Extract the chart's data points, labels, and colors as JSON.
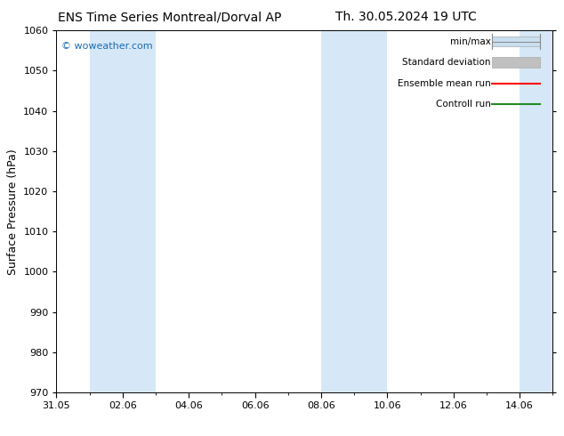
{
  "title_left": "ENS Time Series Montreal/Dorval AP",
  "title_right": "Th. 30.05.2024 19 UTC",
  "ylabel": "Surface Pressure (hPa)",
  "ylim": [
    970,
    1060
  ],
  "yticks": [
    970,
    980,
    990,
    1000,
    1010,
    1020,
    1030,
    1040,
    1050,
    1060
  ],
  "xtick_labels": [
    "31.05",
    "02.06",
    "04.06",
    "06.06",
    "08.06",
    "10.06",
    "12.06",
    "14.06"
  ],
  "xtick_positions": [
    0,
    2,
    4,
    6,
    8,
    10,
    12,
    14
  ],
  "xlim": [
    0,
    15
  ],
  "shaded_bands": [
    {
      "x_start": 1.0,
      "x_end": 3.0
    },
    {
      "x_start": 8.0,
      "x_end": 10.0
    },
    {
      "x_start": 14.0,
      "x_end": 15.0
    }
  ],
  "shade_color": "#d6e8f7",
  "bg_color": "#ffffff",
  "watermark_text": "© woweather.com",
  "watermark_color": "#1a6bb5",
  "legend_items": [
    {
      "label": "min/max",
      "color": "#c8dff0",
      "type": "minmax"
    },
    {
      "label": "Standard deviation",
      "color": "#c0c0c0",
      "type": "bar"
    },
    {
      "label": "Ensemble mean run",
      "color": "#ff0000",
      "type": "line"
    },
    {
      "label": "Controll run",
      "color": "#228b22",
      "type": "line"
    }
  ],
  "title_fontsize": 10,
  "tick_fontsize": 8,
  "ylabel_fontsize": 9,
  "legend_fontsize": 7.5
}
